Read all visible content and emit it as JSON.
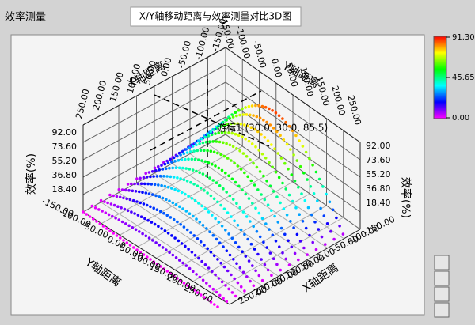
{
  "panel_label": "效率测量",
  "title": "X/Y轴移动距离与效率测量对比3D图",
  "cursor_label": "游标1 (30.0, 30.0, 85.5)",
  "top_x_axis": {
    "label": "X轴距离",
    "ticks": [
      "250.00",
      "200.00",
      "150.00",
      "100.00",
      "50.00",
      "0.00",
      "-50.00",
      "-100.00",
      "-150.00"
    ]
  },
  "top_y_axis": {
    "label": "Y轴距离",
    "ticks": [
      "-150.00",
      "-100.00",
      "-50.00",
      "0.00",
      "50.00",
      "100.00",
      "150.00",
      "200.00",
      "250.00"
    ]
  },
  "left_z_axis": {
    "label": "效率(%)",
    "ticks": [
      "92.00",
      "73.60",
      "55.20",
      "36.80",
      "18.40"
    ]
  },
  "right_z_axis": {
    "label": "效率(%)",
    "ticks": [
      "92.00",
      "73.60",
      "55.20",
      "36.80",
      "18.40"
    ]
  },
  "bottom_y_axis": {
    "label": "Y轴距离",
    "ticks": [
      "-150.00",
      "-100.00",
      "-50.00",
      "0.00",
      "50.00",
      "100.00",
      "150.00",
      "200.00",
      "250.00"
    ]
  },
  "bottom_x_axis": {
    "label": "X轴距离",
    "ticks": [
      "250.00",
      "200.00",
      "150.00",
      "100.00",
      "50.00",
      "0.00",
      "-50.00",
      "-100.00",
      "-150.00"
    ]
  },
  "colorbar": {
    "ticks": [
      "91.30",
      "45.65",
      "0.00"
    ]
  }
}
